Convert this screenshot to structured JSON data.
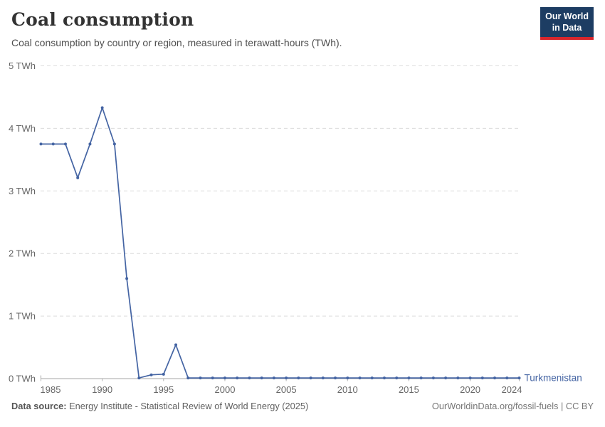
{
  "header": {
    "title": "Coal consumption",
    "subtitle": "Coal consumption by country or region, measured in terawatt-hours (TWh).",
    "logo": {
      "line1": "Our World",
      "line2": "in Data"
    }
  },
  "footer": {
    "source_label": "Data source:",
    "source_text": "Energy Institute - Statistical Review of World Energy (2025)",
    "rights_text": "OurWorldinData.org/fossil-fuels | CC BY"
  },
  "colors": {
    "series_blue": "#4464a3",
    "logo_navy": "#1d3d63",
    "logo_red": "#d8262c",
    "grid_line": "#dcdcdc",
    "axis_line": "#a5a5a5",
    "tick_mark": "#b3b3b3",
    "tick_text": "#666666"
  },
  "chart_data": {
    "type": "line",
    "title": "Coal consumption",
    "subtitle": "Coal consumption by country or region, measured in terawatt-hours (TWh).",
    "unit": "TWh",
    "ylim": [
      0,
      5
    ],
    "yticks": [
      0,
      1,
      2,
      3,
      4,
      5
    ],
    "ytick_suffix": " TWh",
    "xlim": [
      1985,
      2024
    ],
    "xticks": [
      1985,
      1990,
      1995,
      2000,
      2005,
      2010,
      2015,
      2020,
      2024
    ],
    "grid": "horizontal-dashed",
    "legend_position": "end-of-line",
    "x": [
      1985,
      1986,
      1987,
      1988,
      1989,
      1990,
      1991,
      1992,
      1993,
      1994,
      1995,
      1996,
      1997,
      1998,
      1999,
      2000,
      2001,
      2002,
      2003,
      2004,
      2005,
      2006,
      2007,
      2008,
      2009,
      2010,
      2011,
      2012,
      2013,
      2014,
      2015,
      2016,
      2017,
      2018,
      2019,
      2020,
      2021,
      2022,
      2023,
      2024
    ],
    "series": [
      {
        "name": "Turkmenistan",
        "color": "#4464a3",
        "values": [
          3.75,
          3.75,
          3.75,
          3.21,
          3.75,
          4.33,
          3.75,
          1.6,
          0.01,
          0.06,
          0.07,
          0.54,
          0.01,
          0.01,
          0.01,
          0.01,
          0.01,
          0.01,
          0.01,
          0.01,
          0.01,
          0.01,
          0.01,
          0.01,
          0.01,
          0.01,
          0.01,
          0.01,
          0.01,
          0.01,
          0.01,
          0.01,
          0.01,
          0.01,
          0.01,
          0.01,
          0.01,
          0.01,
          0.01,
          0.01
        ]
      }
    ]
  }
}
